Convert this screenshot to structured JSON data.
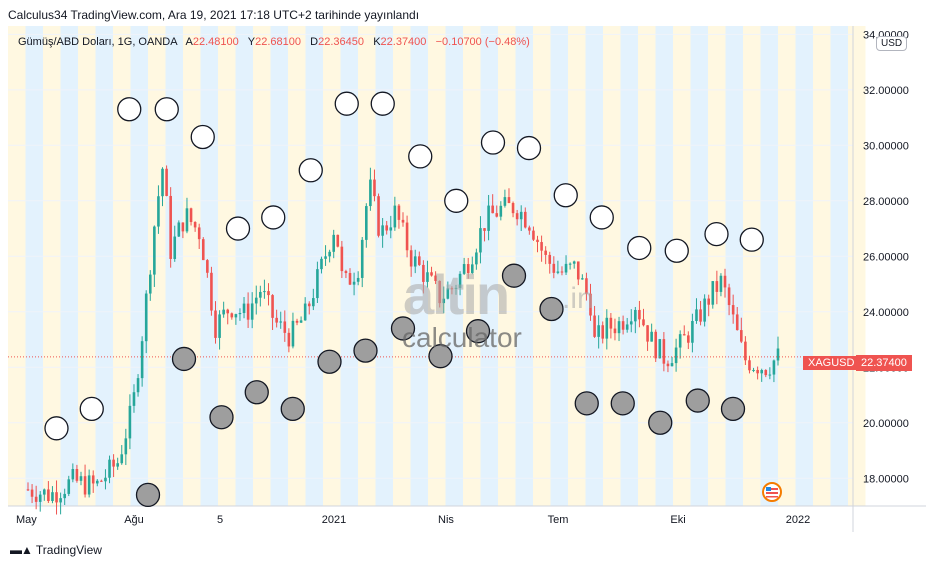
{
  "header": {
    "publisher_line": "Calculus34 TradingView.com, Ara 19, 2021 17:18 UTC+2 tarihinde yayınlandı"
  },
  "legend": {
    "symbol": "Gümüş/ABD Doları, 1G, OANDA",
    "open_label": "A",
    "open": "22.48100",
    "high_label": "Y",
    "high": "22.68100",
    "low_label": "D",
    "low": "22.36450",
    "close_label": "K",
    "close": "22.37400",
    "change": "−0.10700 (−0.48%)"
  },
  "price_axis": {
    "currency": "USD",
    "ticks": [
      "34.00000",
      "32.00000",
      "30.00000",
      "28.00000",
      "26.00000",
      "24.00000",
      "22.00000",
      "20.00000",
      "18.00000"
    ],
    "last_symbol": "XAGUSD",
    "last_price": "22.37400"
  },
  "time_axis": {
    "ticks": [
      "May",
      "Ağu",
      "5",
      "2021",
      "Nis",
      "Tem",
      "Eki",
      "2022"
    ]
  },
  "watermark": {
    "brand": "altin",
    "suffix": ".in",
    "subtitle": "calculator"
  },
  "footer": {
    "brand": "TradingView"
  },
  "colors": {
    "up": "#26a69a",
    "down": "#ef5350",
    "band_blue": "#e3f2fd",
    "band_cream": "#fff8e1",
    "grid": "#f0f3fa"
  },
  "chart_data": {
    "type": "candlestick",
    "ylim": [
      17,
      34.3
    ],
    "y_ticks": [
      34,
      32,
      30,
      28,
      26,
      24,
      22,
      20,
      18
    ],
    "x_ticks": [
      "May",
      "Ağu",
      "5",
      "2021",
      "Nis",
      "Tem",
      "Eki",
      "2022"
    ],
    "close_path": [
      {
        "t": 0.0,
        "v": 17.6
      },
      {
        "t": 0.03,
        "v": 17.4
      },
      {
        "t": 0.06,
        "v": 17.9
      },
      {
        "t": 0.09,
        "v": 17.7
      },
      {
        "t": 0.12,
        "v": 18.6
      },
      {
        "t": 0.14,
        "v": 20.6
      },
      {
        "t": 0.155,
        "v": 23.8
      },
      {
        "t": 0.17,
        "v": 27.5
      },
      {
        "t": 0.18,
        "v": 29.3
      },
      {
        "t": 0.19,
        "v": 26.2
      },
      {
        "t": 0.21,
        "v": 27.5
      },
      {
        "t": 0.23,
        "v": 26.8
      },
      {
        "t": 0.25,
        "v": 23.5
      },
      {
        "t": 0.27,
        "v": 24.2
      },
      {
        "t": 0.29,
        "v": 23.9
      },
      {
        "t": 0.31,
        "v": 24.8
      },
      {
        "t": 0.33,
        "v": 23.6
      },
      {
        "t": 0.35,
        "v": 23.1
      },
      {
        "t": 0.37,
        "v": 23.9
      },
      {
        "t": 0.39,
        "v": 25.5
      },
      {
        "t": 0.41,
        "v": 27.2
      },
      {
        "t": 0.42,
        "v": 24.9
      },
      {
        "t": 0.44,
        "v": 25.6
      },
      {
        "t": 0.455,
        "v": 28.6
      },
      {
        "t": 0.47,
        "v": 26.8
      },
      {
        "t": 0.49,
        "v": 27.6
      },
      {
        "t": 0.51,
        "v": 26.0
      },
      {
        "t": 0.53,
        "v": 25.3
      },
      {
        "t": 0.55,
        "v": 24.5
      },
      {
        "t": 0.57,
        "v": 25.0
      },
      {
        "t": 0.59,
        "v": 26.0
      },
      {
        "t": 0.61,
        "v": 27.3
      },
      {
        "t": 0.63,
        "v": 27.7
      },
      {
        "t": 0.65,
        "v": 27.8
      },
      {
        "t": 0.67,
        "v": 27.2
      },
      {
        "t": 0.69,
        "v": 25.9
      },
      {
        "t": 0.71,
        "v": 25.4
      },
      {
        "t": 0.73,
        "v": 25.6
      },
      {
        "t": 0.75,
        "v": 24.3
      },
      {
        "t": 0.755,
        "v": 22.9
      },
      {
        "t": 0.77,
        "v": 23.4
      },
      {
        "t": 0.79,
        "v": 23.6
      },
      {
        "t": 0.81,
        "v": 24.3
      },
      {
        "t": 0.83,
        "v": 23.0
      },
      {
        "t": 0.85,
        "v": 22.3
      },
      {
        "t": 0.87,
        "v": 22.8
      },
      {
        "t": 0.89,
        "v": 23.6
      },
      {
        "t": 0.91,
        "v": 24.6
      },
      {
        "t": 0.925,
        "v": 25.1
      },
      {
        "t": 0.94,
        "v": 23.7
      },
      {
        "t": 0.955,
        "v": 22.3
      },
      {
        "t": 0.97,
        "v": 22.1
      },
      {
        "t": 0.985,
        "v": 22.0
      },
      {
        "t": 1.0,
        "v": 22.37
      }
    ]
  },
  "markers": {
    "open_circles": [
      [
        0.038,
        19.8
      ],
      [
        0.085,
        20.5
      ],
      [
        0.135,
        31.3
      ],
      [
        0.185,
        31.3
      ],
      [
        0.233,
        30.3
      ],
      [
        0.28,
        27.0
      ],
      [
        0.327,
        27.4
      ],
      [
        0.377,
        29.1
      ],
      [
        0.425,
        31.5
      ],
      [
        0.473,
        31.5
      ],
      [
        0.523,
        29.6
      ],
      [
        0.571,
        28.0
      ],
      [
        0.62,
        30.1
      ],
      [
        0.668,
        29.9
      ],
      [
        0.717,
        28.2
      ],
      [
        0.765,
        27.4
      ],
      [
        0.815,
        26.3
      ],
      [
        0.865,
        26.2
      ],
      [
        0.918,
        26.8
      ],
      [
        0.965,
        26.6
      ]
    ],
    "filled_circles": [
      [
        0.16,
        17.4
      ],
      [
        0.208,
        22.3
      ],
      [
        0.258,
        20.2
      ],
      [
        0.305,
        21.1
      ],
      [
        0.353,
        20.5
      ],
      [
        0.402,
        22.2
      ],
      [
        0.45,
        22.6
      ],
      [
        0.5,
        23.4
      ],
      [
        0.55,
        22.4
      ],
      [
        0.6,
        23.3
      ],
      [
        0.648,
        25.3
      ],
      [
        0.698,
        24.1
      ],
      [
        0.745,
        20.7
      ],
      [
        0.793,
        20.7
      ],
      [
        0.843,
        20.0
      ],
      [
        0.893,
        20.8
      ],
      [
        0.94,
        20.5
      ]
    ]
  }
}
